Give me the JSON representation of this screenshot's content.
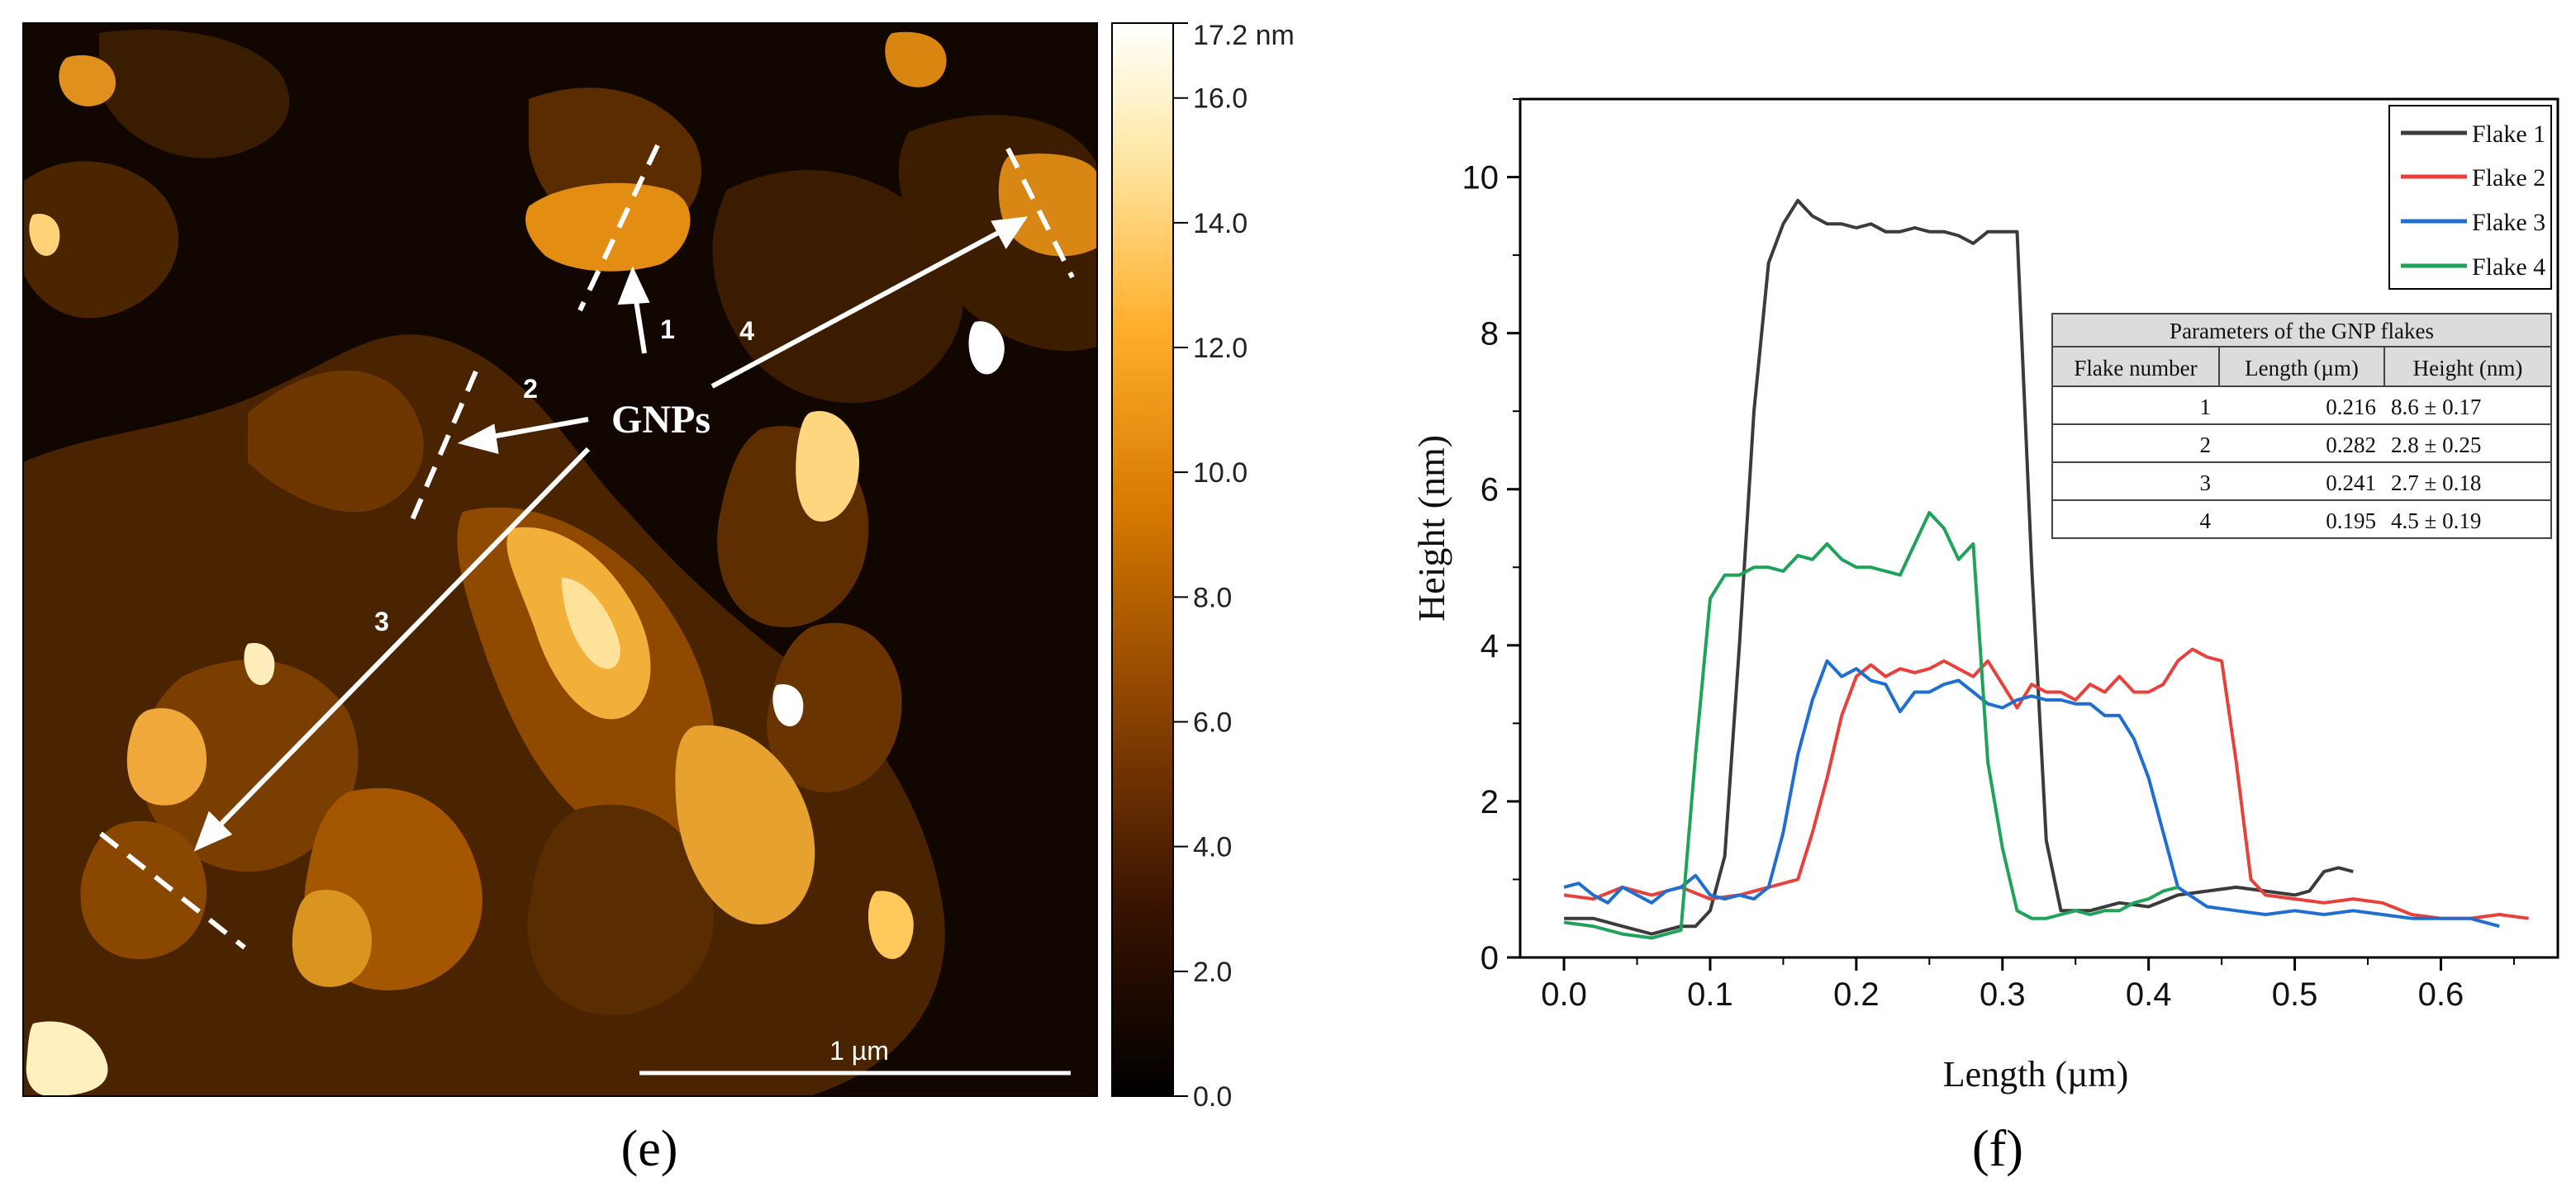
{
  "panel_labels": {
    "left": "(e)",
    "right": "(f)"
  },
  "afm": {
    "colorbar": {
      "max_label": "17.2 nm",
      "ticks": [
        "0.0",
        "2.0",
        "4.0",
        "6.0",
        "8.0",
        "10.0",
        "12.0",
        "14.0",
        "16.0"
      ],
      "ticks_values": [
        0,
        2,
        4,
        6,
        8,
        10,
        12,
        14,
        16
      ],
      "range": [
        0,
        17.2
      ],
      "colors": [
        "#000000",
        "#3a1400",
        "#8a4200",
        "#d77a00",
        "#ffb02e",
        "#ffe9a8",
        "#ffffff"
      ]
    },
    "annotation": "GNPs",
    "flake_labels": [
      "1",
      "2",
      "3",
      "4"
    ],
    "scale_bar": "1 µm"
  },
  "chart_data": {
    "type": "line",
    "xlabel": "Length (µm)",
    "ylabel": "Height (nm)",
    "xlim": [
      -0.03,
      0.68
    ],
    "ylim": [
      0,
      11
    ],
    "xticks": [
      "0.0",
      "0.1",
      "0.2",
      "0.3",
      "0.4",
      "0.5",
      "0.6"
    ],
    "xticks_values": [
      0,
      0.1,
      0.2,
      0.3,
      0.4,
      0.5,
      0.6
    ],
    "yticks": [
      "0",
      "2",
      "4",
      "6",
      "8",
      "10"
    ],
    "yticks_values": [
      0,
      2,
      4,
      6,
      8,
      10
    ],
    "legend_position": "top-right",
    "series": [
      {
        "name": "Flake 1",
        "color": "#3b3b3b",
        "x": [
          0.0,
          0.02,
          0.04,
          0.06,
          0.08,
          0.09,
          0.1,
          0.11,
          0.12,
          0.13,
          0.14,
          0.15,
          0.16,
          0.17,
          0.18,
          0.19,
          0.2,
          0.21,
          0.22,
          0.23,
          0.24,
          0.25,
          0.26,
          0.27,
          0.28,
          0.29,
          0.3,
          0.31,
          0.32,
          0.33,
          0.34,
          0.35,
          0.36,
          0.38,
          0.4,
          0.42,
          0.44,
          0.46,
          0.48,
          0.5,
          0.51,
          0.52,
          0.53,
          0.54
        ],
        "y": [
          0.5,
          0.5,
          0.4,
          0.3,
          0.4,
          0.4,
          0.6,
          1.3,
          4.0,
          7.0,
          8.9,
          9.4,
          9.7,
          9.5,
          9.4,
          9.4,
          9.35,
          9.4,
          9.3,
          9.3,
          9.35,
          9.3,
          9.3,
          9.25,
          9.15,
          9.3,
          9.3,
          9.3,
          5.0,
          1.5,
          0.6,
          0.6,
          0.6,
          0.7,
          0.65,
          0.8,
          0.85,
          0.9,
          0.85,
          0.8,
          0.85,
          1.1,
          1.15,
          1.1
        ]
      },
      {
        "name": "Flake 2",
        "color": "#e8403a",
        "x": [
          0.0,
          0.02,
          0.04,
          0.06,
          0.08,
          0.1,
          0.12,
          0.14,
          0.16,
          0.17,
          0.18,
          0.19,
          0.2,
          0.21,
          0.22,
          0.23,
          0.24,
          0.25,
          0.26,
          0.27,
          0.28,
          0.29,
          0.3,
          0.31,
          0.32,
          0.33,
          0.34,
          0.35,
          0.36,
          0.37,
          0.38,
          0.39,
          0.4,
          0.41,
          0.42,
          0.43,
          0.44,
          0.45,
          0.46,
          0.47,
          0.48,
          0.5,
          0.52,
          0.54,
          0.56,
          0.58,
          0.6,
          0.62,
          0.64,
          0.66
        ],
        "y": [
          0.8,
          0.75,
          0.9,
          0.8,
          0.9,
          0.75,
          0.8,
          0.9,
          1.0,
          1.6,
          2.3,
          3.1,
          3.6,
          3.75,
          3.6,
          3.7,
          3.65,
          3.7,
          3.8,
          3.7,
          3.6,
          3.8,
          3.5,
          3.2,
          3.5,
          3.4,
          3.4,
          3.3,
          3.5,
          3.4,
          3.6,
          3.4,
          3.4,
          3.5,
          3.8,
          3.95,
          3.85,
          3.8,
          2.5,
          1.0,
          0.8,
          0.75,
          0.7,
          0.75,
          0.7,
          0.55,
          0.5,
          0.5,
          0.55,
          0.5
        ]
      },
      {
        "name": "Flake 3",
        "color": "#1f6fd1",
        "x": [
          0.0,
          0.01,
          0.02,
          0.03,
          0.04,
          0.05,
          0.06,
          0.07,
          0.08,
          0.09,
          0.1,
          0.11,
          0.12,
          0.13,
          0.14,
          0.15,
          0.16,
          0.17,
          0.18,
          0.19,
          0.2,
          0.21,
          0.22,
          0.23,
          0.24,
          0.25,
          0.26,
          0.27,
          0.28,
          0.29,
          0.3,
          0.31,
          0.32,
          0.33,
          0.34,
          0.35,
          0.36,
          0.37,
          0.38,
          0.39,
          0.4,
          0.41,
          0.42,
          0.44,
          0.46,
          0.48,
          0.5,
          0.52,
          0.54,
          0.56,
          0.58,
          0.6,
          0.62,
          0.64
        ],
        "y": [
          0.9,
          0.95,
          0.8,
          0.7,
          0.9,
          0.8,
          0.7,
          0.85,
          0.9,
          1.05,
          0.8,
          0.75,
          0.8,
          0.75,
          0.9,
          1.6,
          2.6,
          3.3,
          3.8,
          3.6,
          3.7,
          3.55,
          3.5,
          3.15,
          3.4,
          3.4,
          3.5,
          3.55,
          3.4,
          3.25,
          3.2,
          3.3,
          3.35,
          3.3,
          3.3,
          3.25,
          3.25,
          3.1,
          3.1,
          2.8,
          2.3,
          1.6,
          0.9,
          0.65,
          0.6,
          0.55,
          0.6,
          0.55,
          0.6,
          0.55,
          0.5,
          0.5,
          0.5,
          0.4
        ]
      },
      {
        "name": "Flake 4",
        "color": "#1fa35a",
        "x": [
          0.0,
          0.02,
          0.04,
          0.06,
          0.08,
          0.09,
          0.1,
          0.11,
          0.12,
          0.13,
          0.14,
          0.15,
          0.16,
          0.17,
          0.18,
          0.19,
          0.2,
          0.21,
          0.22,
          0.23,
          0.24,
          0.25,
          0.26,
          0.27,
          0.28,
          0.29,
          0.3,
          0.31,
          0.32,
          0.33,
          0.34,
          0.35,
          0.36,
          0.37,
          0.38,
          0.39,
          0.4,
          0.41,
          0.42
        ],
        "y": [
          0.45,
          0.4,
          0.3,
          0.25,
          0.35,
          2.6,
          4.6,
          4.9,
          4.9,
          5.0,
          5.0,
          4.95,
          5.15,
          5.1,
          5.3,
          5.1,
          5.0,
          5.0,
          4.95,
          4.9,
          5.3,
          5.7,
          5.5,
          5.1,
          5.3,
          2.5,
          1.4,
          0.6,
          0.5,
          0.5,
          0.55,
          0.6,
          0.55,
          0.6,
          0.6,
          0.7,
          0.75,
          0.85,
          0.9
        ]
      }
    ],
    "table": {
      "title": "Parameters of the GNP flakes",
      "headers": [
        "Flake number",
        "Length (µm)",
        "Height (nm)"
      ],
      "rows": [
        [
          "1",
          "0.216",
          "8.6 ± 0.17"
        ],
        [
          "2",
          "0.282",
          "2.8 ± 0.25"
        ],
        [
          "3",
          "0.241",
          "2.7 ± 0.18"
        ],
        [
          "4",
          "0.195",
          "4.5 ± 0.19"
        ]
      ]
    }
  }
}
